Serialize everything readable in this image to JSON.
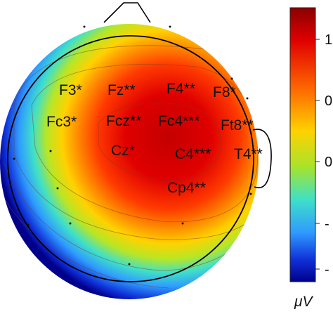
{
  "chart_data": {
    "type": "heatmap",
    "title": "",
    "colorbar": {
      "unit": "μV",
      "ticks": [
        "1",
        "0",
        "0",
        "-",
        "-"
      ],
      "colors": [
        "#8b0000",
        "#e00000",
        "#ff6a00",
        "#ffd200",
        "#a8e32a",
        "#3fe0c8",
        "#2f9bff",
        "#1030d8",
        "#00008b"
      ]
    },
    "electrodes": [
      {
        "name": "F3*"
      },
      {
        "name": "Fz**"
      },
      {
        "name": "F4**"
      },
      {
        "name": "F8*"
      },
      {
        "name": "Fc3*"
      },
      {
        "name": "Fcz**"
      },
      {
        "name": "Fc4***"
      },
      {
        "name": "Ft8**"
      },
      {
        "name": "Cz*"
      },
      {
        "name": "C4***"
      },
      {
        "name": "T4**"
      },
      {
        "name": "Cp4**"
      }
    ]
  }
}
